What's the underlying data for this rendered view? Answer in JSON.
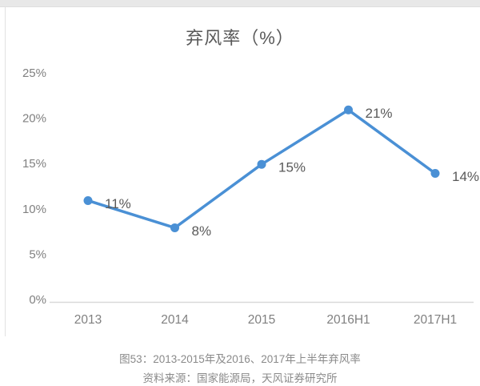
{
  "page": {
    "background": "#ffffff",
    "top_strip_color": "#e8e8e8",
    "card_border_color": "#e2e2e2"
  },
  "chart": {
    "title_color": "#595959",
    "tick_color": "#808080",
    "data_label_color": "#595959",
    "line_color": "#4a90d5",
    "marker_color": "#4a90d5",
    "axis_line_color": "#d9d9d9"
  },
  "chart_data": {
    "type": "line",
    "title": "弃风率（%）",
    "categories": [
      "2013",
      "2014",
      "2015",
      "2016H1",
      "2017H1"
    ],
    "values": [
      11,
      8,
      15,
      21,
      14
    ],
    "data_labels": [
      "11%",
      "8%",
      "15%",
      "21%",
      "14%"
    ],
    "y_ticks": [
      "0%",
      "5%",
      "10%",
      "15%",
      "20%",
      "25%"
    ],
    "y_tick_values": [
      0,
      5,
      10,
      15,
      20,
      25
    ],
    "ylim": [
      0,
      25
    ],
    "xlabel": "",
    "ylabel": "",
    "grid": false,
    "legend": false,
    "marker": "circle"
  },
  "caption": {
    "line1": "图53：2013-2015年及2016、2017年上半年弃风率",
    "line2": "资料来源：国家能源局，天风证券研究所"
  }
}
